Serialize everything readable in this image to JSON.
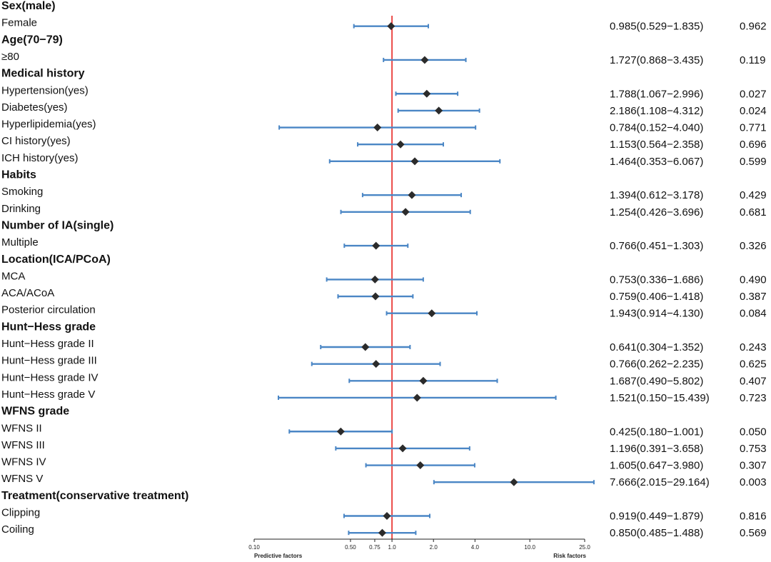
{
  "chart_data": {
    "type": "forest",
    "title": "",
    "xscale": "log",
    "xlim": [
      0.1,
      25.0
    ],
    "reference_line": 1.0,
    "x_ticks": [
      0.1,
      0.5,
      0.75,
      1.0,
      2.0,
      4.0,
      10.0,
      25.0
    ],
    "x_tick_labels": [
      "0.10",
      "0.50",
      "0.75",
      "1.0",
      "2.0",
      "4.0",
      "10.0",
      "25.0"
    ],
    "xlabel_left": "Predictive factors",
    "xlabel_right": "Risk factors",
    "rows": [
      {
        "kind": "header",
        "label": "Sex(male)"
      },
      {
        "kind": "item",
        "label": "Female",
        "or": 0.985,
        "lo": 0.529,
        "hi": 1.835,
        "ci_text": "0.985(0.529−1.835)",
        "p": "0.962"
      },
      {
        "kind": "header",
        "label": "Age(70−79)"
      },
      {
        "kind": "item",
        "label": "≥80",
        "or": 1.727,
        "lo": 0.868,
        "hi": 3.435,
        "ci_text": "1.727(0.868−3.435)",
        "p": "0.119"
      },
      {
        "kind": "header",
        "label": "Medical history"
      },
      {
        "kind": "item",
        "label": "Hypertension(yes)",
        "or": 1.788,
        "lo": 1.067,
        "hi": 2.996,
        "ci_text": "1.788(1.067−2.996)",
        "p": "0.027"
      },
      {
        "kind": "item",
        "label": "Diabetes(yes)",
        "or": 2.186,
        "lo": 1.108,
        "hi": 4.312,
        "ci_text": "2.186(1.108−4.312)",
        "p": "0.024"
      },
      {
        "kind": "item",
        "label": "Hyperlipidemia(yes)",
        "or": 0.784,
        "lo": 0.152,
        "hi": 4.04,
        "ci_text": "0.784(0.152−4.040)",
        "p": "0.771"
      },
      {
        "kind": "item",
        "label": "CI history(yes)",
        "or": 1.153,
        "lo": 0.564,
        "hi": 2.358,
        "ci_text": "1.153(0.564−2.358)",
        "p": "0.696"
      },
      {
        "kind": "item",
        "label": "ICH history(yes)",
        "or": 1.464,
        "lo": 0.353,
        "hi": 6.067,
        "ci_text": "1.464(0.353−6.067)",
        "p": "0.599"
      },
      {
        "kind": "header",
        "label": "Habits"
      },
      {
        "kind": "item",
        "label": "Smoking",
        "or": 1.394,
        "lo": 0.612,
        "hi": 3.178,
        "ci_text": "1.394(0.612−3.178)",
        "p": "0.429"
      },
      {
        "kind": "item",
        "label": "Drinking",
        "or": 1.254,
        "lo": 0.426,
        "hi": 3.696,
        "ci_text": "1.254(0.426−3.696)",
        "p": "0.681"
      },
      {
        "kind": "header",
        "label": "Number of IA(single)"
      },
      {
        "kind": "item",
        "label": "Multiple",
        "or": 0.766,
        "lo": 0.451,
        "hi": 1.303,
        "ci_text": "0.766(0.451−1.303)",
        "p": "0.326"
      },
      {
        "kind": "header",
        "label": "Location(ICA/PCoA)"
      },
      {
        "kind": "item",
        "label": "MCA",
        "or": 0.753,
        "lo": 0.336,
        "hi": 1.686,
        "ci_text": "0.753(0.336−1.686)",
        "p": "0.490"
      },
      {
        "kind": "item",
        "label": "ACA/ACoA",
        "or": 0.759,
        "lo": 0.406,
        "hi": 1.418,
        "ci_text": "0.759(0.406−1.418)",
        "p": "0.387"
      },
      {
        "kind": "item",
        "label": "Posterior circulation",
        "or": 1.943,
        "lo": 0.914,
        "hi": 4.13,
        "ci_text": "1.943(0.914−4.130)",
        "p": "0.084"
      },
      {
        "kind": "header",
        "label": "Hunt−Hess grade"
      },
      {
        "kind": "item",
        "label": "Hunt−Hess grade II",
        "or": 0.641,
        "lo": 0.304,
        "hi": 1.352,
        "ci_text": "0.641(0.304−1.352)",
        "p": "0.243"
      },
      {
        "kind": "item",
        "label": "Hunt−Hess grade III",
        "or": 0.766,
        "lo": 0.262,
        "hi": 2.235,
        "ci_text": "0.766(0.262−2.235)",
        "p": "0.625"
      },
      {
        "kind": "item",
        "label": "Hunt−Hess grade IV",
        "or": 1.687,
        "lo": 0.49,
        "hi": 5.802,
        "ci_text": "1.687(0.490−5.802)",
        "p": "0.407"
      },
      {
        "kind": "item",
        "label": "Hunt−Hess grade V",
        "or": 1.521,
        "lo": 0.15,
        "hi": 15.439,
        "ci_text": "1.521(0.150−15.439)",
        "p": "0.723"
      },
      {
        "kind": "header",
        "label": "WFNS grade"
      },
      {
        "kind": "item",
        "label": "WFNS II",
        "or": 0.425,
        "lo": 0.18,
        "hi": 1.001,
        "ci_text": "0.425(0.180−1.001)",
        "p": "0.050"
      },
      {
        "kind": "item",
        "label": "WFNS III",
        "or": 1.196,
        "lo": 0.391,
        "hi": 3.658,
        "ci_text": "1.196(0.391−3.658)",
        "p": "0.753"
      },
      {
        "kind": "item",
        "label": "WFNS IV",
        "or": 1.605,
        "lo": 0.647,
        "hi": 3.98,
        "ci_text": "1.605(0.647−3.980)",
        "p": "0.307"
      },
      {
        "kind": "item",
        "label": "WFNS V",
        "or": 7.666,
        "lo": 2.015,
        "hi": 29.164,
        "ci_text": "7.666(2.015−29.164)",
        "p": "0.003"
      },
      {
        "kind": "header",
        "label": "Treatment(conservative treatment)"
      },
      {
        "kind": "item",
        "label": "Clipping",
        "or": 0.919,
        "lo": 0.449,
        "hi": 1.879,
        "ci_text": "0.919(0.449−1.879)",
        "p": "0.816"
      },
      {
        "kind": "item",
        "label": "Coiling",
        "or": 0.85,
        "lo": 0.485,
        "hi": 1.488,
        "ci_text": "0.850(0.485−1.488)",
        "p": "0.569"
      }
    ],
    "colors": {
      "ci_line": "#4a86c5",
      "point": "#2b2b2b",
      "reference": "#e8231f",
      "axis": "#222222",
      "text": "#111111"
    }
  }
}
